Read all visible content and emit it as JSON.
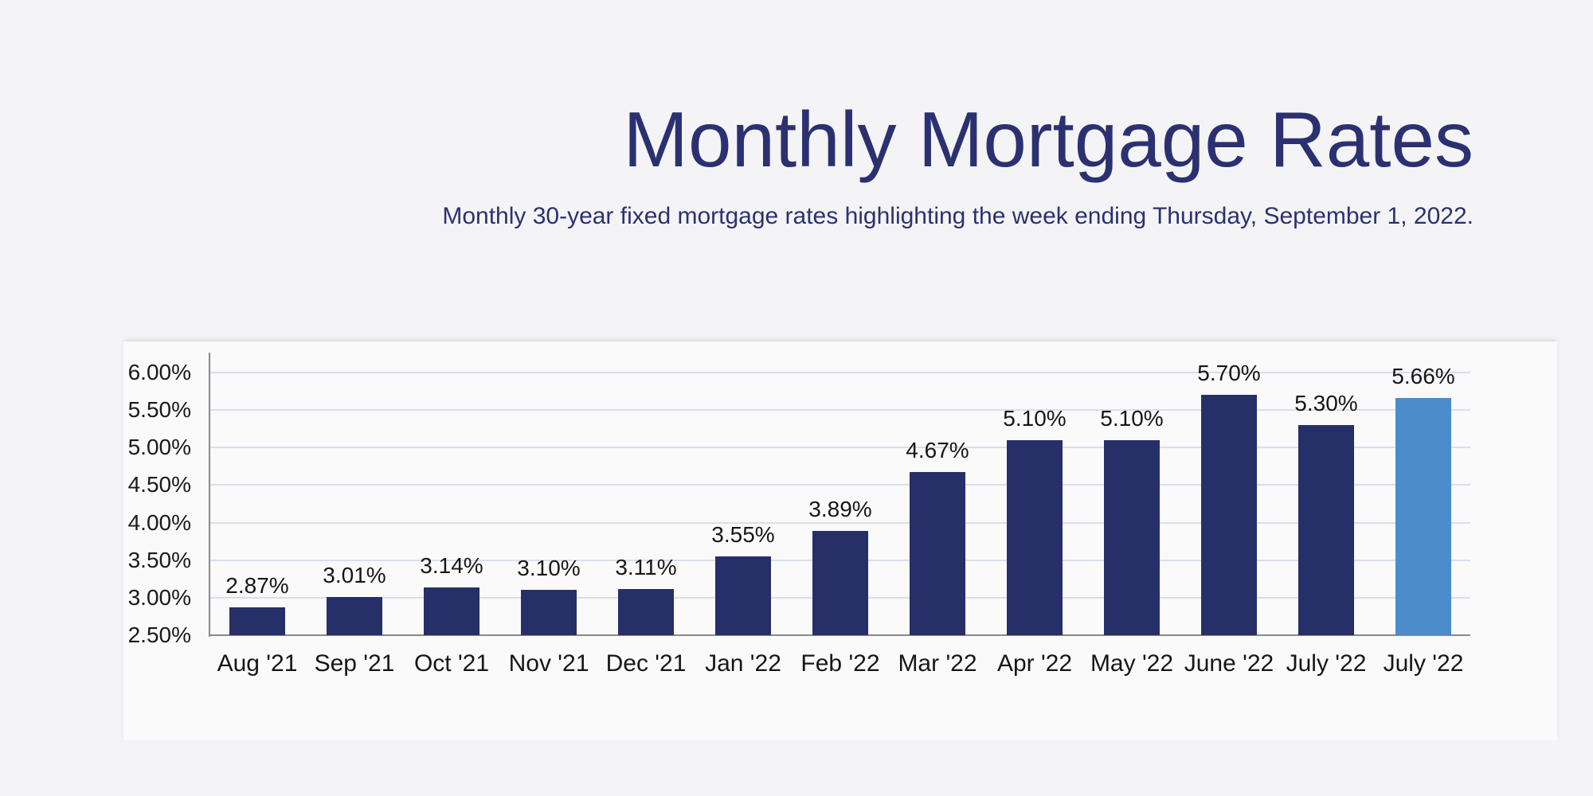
{
  "title": "Monthly Mortgage Rates",
  "subtitle": "Monthly 30-year fixed mortgage rates highlighting the week ending Thursday, September 1, 2022.",
  "colors": {
    "background": "#f4f4f6",
    "heading_navy": "#2b3170",
    "bar_navy": "#272f68",
    "bar_highlight_blue": "#4a8ccc",
    "gridline": "#d8deed",
    "axis_gray": "#8a8a8a",
    "label_black": "#161616"
  },
  "chart_data": {
    "type": "bar",
    "title": "Monthly Mortgage Rates",
    "subtitle": "Monthly 30-year fixed mortgage rates highlighting the week ending Thursday, September 1, 2022.",
    "categories": [
      "Aug '21",
      "Sep '21",
      "Oct '21",
      "Nov '21",
      "Dec '21",
      "Jan '22",
      "Feb '22",
      "Mar '22",
      "Apr '22",
      "May '22",
      "June '22",
      "July '22",
      "July '22"
    ],
    "values": [
      2.87,
      3.01,
      3.14,
      3.1,
      3.11,
      3.55,
      3.89,
      4.67,
      5.1,
      5.1,
      5.7,
      5.3,
      5.66
    ],
    "value_labels": [
      "2.87%",
      "3.01%",
      "3.14%",
      "3.10%",
      "3.11%",
      "3.55%",
      "3.89%",
      "4.67%",
      "5.10%",
      "5.10%",
      "5.70%",
      "5.30%",
      "5.66%"
    ],
    "highlight_index": 12,
    "xlabel": "",
    "ylabel": "",
    "ylim": [
      2.5,
      6.25
    ],
    "grid": true,
    "legend": "none",
    "yticks": [
      {
        "label": "6.00%",
        "value": 6.0
      },
      {
        "label": "5.50%",
        "value": 5.5
      },
      {
        "label": "5.00%",
        "value": 5.0
      },
      {
        "label": "4.50%",
        "value": 4.5
      },
      {
        "label": "4.00%",
        "value": 4.0
      },
      {
        "label": "3.50%",
        "value": 3.5
      },
      {
        "label": "3.00%",
        "value": 3.0
      },
      {
        "label": "2.50%",
        "value": 2.5
      }
    ]
  }
}
